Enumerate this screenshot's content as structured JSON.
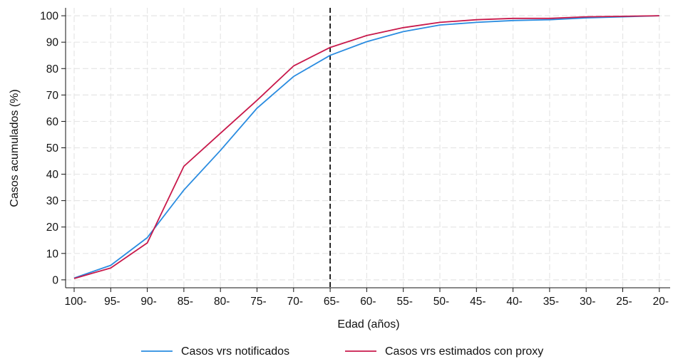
{
  "chart_data": {
    "type": "line",
    "xlabel": "Edad (años)",
    "ylabel": "Casos acumulados (%)",
    "categories": [
      "100-",
      "95-",
      "90-",
      "85-",
      "80-",
      "75-",
      "70-",
      "65-",
      "60-",
      "55-",
      "50-",
      "45-",
      "40-",
      "35-",
      "30-",
      "25-",
      "20-"
    ],
    "yticks": [
      0,
      10,
      20,
      30,
      40,
      50,
      60,
      70,
      80,
      90,
      100
    ],
    "ylim": [
      -3,
      103
    ],
    "grid": true,
    "reference_line": {
      "category": "65-",
      "style": "dashed"
    },
    "legend_position": "bottom",
    "series": [
      {
        "name": "Casos vrs notificados",
        "color": "#2a8ce0",
        "values": [
          0.7,
          5.5,
          16.0,
          34.0,
          49.0,
          65.0,
          77.0,
          85.0,
          90.2,
          94.0,
          96.5,
          97.5,
          98.2,
          98.5,
          99.2,
          99.6,
          100.0
        ]
      },
      {
        "name": "Casos vrs estimados con proxy",
        "color": "#c8194b",
        "values": [
          0.5,
          4.5,
          14.0,
          43.0,
          55.5,
          68.0,
          81.0,
          88.0,
          92.5,
          95.5,
          97.5,
          98.5,
          99.0,
          99.0,
          99.6,
          99.8,
          100.0
        ]
      }
    ]
  }
}
